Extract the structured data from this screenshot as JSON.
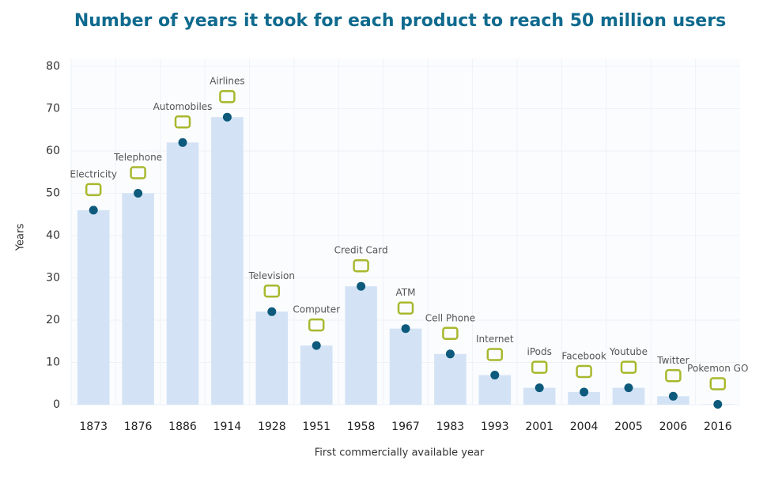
{
  "chart_data": {
    "type": "bar",
    "title": "Number of years it took for each product to reach 50 million users",
    "x_label": "First commercially available year",
    "y_label": "Years",
    "categories": [
      "1873",
      "1876",
      "1886",
      "1914",
      "1928",
      "1951",
      "1958",
      "1967",
      "1983",
      "1993",
      "2001",
      "2004",
      "2005",
      "2006",
      "2016"
    ],
    "labels": [
      "Electricity",
      "Telephone",
      "Automobiles",
      "Airlines",
      "Television",
      "Computer",
      "Credit Card",
      "ATM",
      "Cell Phone",
      "Internet",
      "iPods",
      "Facebook",
      "Youtube",
      "Twitter",
      "Pokemon GO"
    ],
    "values": [
      46,
      50,
      62,
      68,
      22,
      14,
      28,
      18,
      12,
      7,
      4,
      3,
      4,
      2,
      0.1
    ],
    "color": "#d3e3f5",
    "dot_color": "#0d5a7c",
    "icon_color": "#a8b82d",
    "ylim": [
      0,
      80
    ],
    "yticks": [
      0,
      10,
      20,
      30,
      40,
      50,
      60,
      70,
      80
    ],
    "grid": true
  }
}
